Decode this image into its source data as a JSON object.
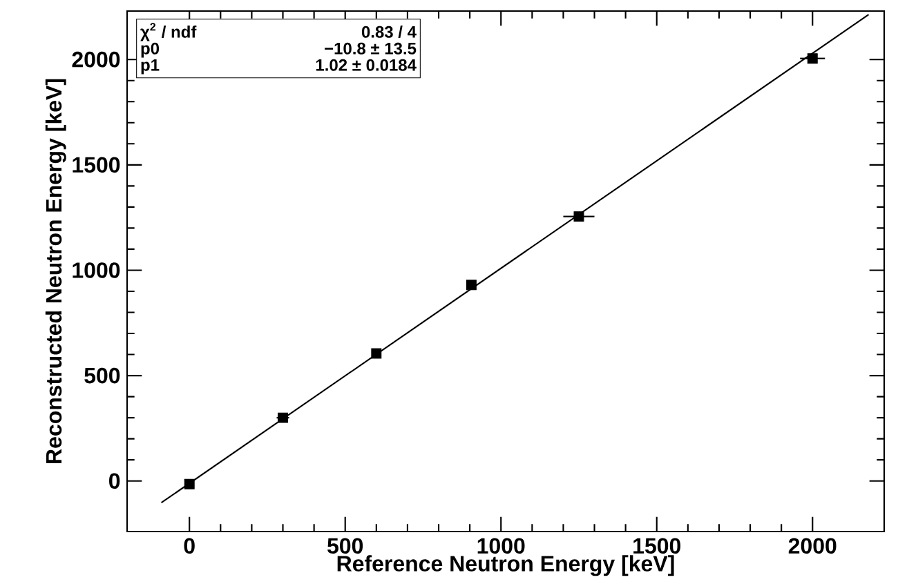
{
  "chart_data": {
    "type": "scatter",
    "xlabel": "Reference Neutron Energy [keV]",
    "ylabel": "Reconstructed Neutron Energy [keV]",
    "xlim": [
      -200,
      2230
    ],
    "ylim": [
      -240,
      2230
    ],
    "xticks": [
      0,
      500,
      1000,
      1500,
      2000
    ],
    "yticks": [
      0,
      500,
      1000,
      1500,
      2000
    ],
    "annotations": [
      "χ$^{2}$ / ndf",
      "0.83 / 4",
      "p0",
      "−10.8 ± 13.5",
      "p1",
      "1.02 ± 0.0184"
    ],
    "series": [
      {
        "color": "#000000",
        "marker": "square",
        "x": [
          0,
          300,
          600,
          905,
          1250,
          2000
        ],
        "values": [
          -15,
          300,
          605,
          930,
          1255,
          2005
        ],
        "xerrors": [
          null,
          20,
          null,
          null,
          50,
          40
        ]
      },
      {
        "type": "line",
        "color": "#000000",
        "marker": "none",
        "line_style": "solid",
        "x": [
          -90,
          2180
        ],
        "values": [
          -103,
          2213
        ]
      }
    ],
    "grid": false
  }
}
